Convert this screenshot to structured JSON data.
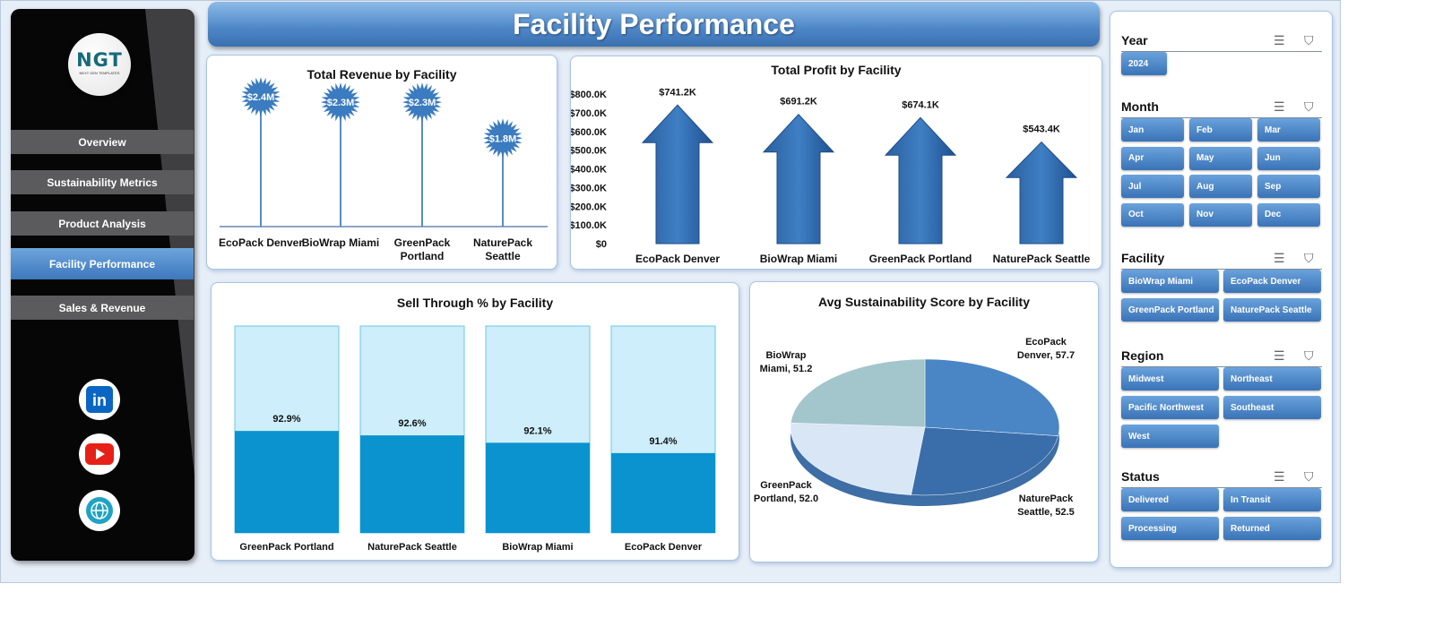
{
  "header": {
    "title": "Facility Performance"
  },
  "sidebar": {
    "logo_text": "NGT",
    "logo_sub": "NEXT GEN TEMPLATES",
    "items": [
      {
        "label": "Overview"
      },
      {
        "label": "Sustainability Metrics"
      },
      {
        "label": "Product Analysis"
      },
      {
        "label": "Facility Performance",
        "active": true
      },
      {
        "label": "Sales & Revenue"
      }
    ],
    "social": [
      {
        "icon": "linkedin-icon",
        "color": "#0a66c2"
      },
      {
        "icon": "youtube-icon",
        "color": "#e62117"
      },
      {
        "icon": "globe-icon",
        "color": "#1fa3c4"
      }
    ]
  },
  "chart_data": [
    {
      "type": "lollipop",
      "title": "Total Revenue  by Facility",
      "categories": [
        "EcoPack Denver",
        "BioWrap Miami",
        "GreenPack Portland",
        "NaturePack Seattle"
      ],
      "values": [
        2.4,
        2.3,
        2.3,
        1.8
      ],
      "labels": [
        "$2.4M",
        "$2.3M",
        "$2.3M",
        "$1.8M"
      ],
      "unit": "M",
      "color": "#3b7bbf"
    },
    {
      "type": "bar",
      "title": "Total Profit by Facility",
      "categories": [
        "EcoPack Denver",
        "BioWrap Miami",
        "GreenPack Portland",
        "NaturePack Seattle"
      ],
      "values": [
        741.2,
        691.2,
        674.1,
        543.4
      ],
      "labels": [
        "$741.2K",
        "$691.2K",
        "$674.1K",
        "$543.4K"
      ],
      "ylim": [
        0,
        800
      ],
      "yticks": [
        "$0",
        "$100.0K",
        "$200.0K",
        "$300.0K",
        "$400.0K",
        "$500.0K",
        "$600.0K",
        "$700.0K",
        "$800.0K"
      ],
      "color": "#2e6aad"
    },
    {
      "type": "bar",
      "title": "Sell Through  % by Facility",
      "categories": [
        "GreenPack Portland",
        "NaturePack Seattle",
        "BioWrap Miami",
        "EcoPack Denver"
      ],
      "values": [
        92.9,
        92.6,
        92.1,
        91.4
      ],
      "labels": [
        "92.9%",
        "92.6%",
        "92.1%",
        "91.4%"
      ],
      "ylim": [
        86,
        100
      ],
      "color": "#0a93cf",
      "bg_color": "#cdeefa"
    },
    {
      "type": "pie",
      "title": "Avg Sustainability  Score by Facility",
      "categories": [
        "EcoPack Denver",
        "NaturePack Seattle",
        "GreenPack Portland",
        "BioWrap Miami"
      ],
      "values": [
        57.7,
        52.5,
        52.0,
        51.2
      ],
      "labels": [
        [
          "EcoPack",
          "Denver, 57.7"
        ],
        [
          "NaturePack",
          "Seattle, 52.5"
        ],
        [
          "GreenPack",
          "Portland, 52.0"
        ],
        [
          "BioWrap",
          "Miami, 51.2"
        ]
      ],
      "colors": [
        "#4a86c5",
        "#3a6eab",
        "#d8e6f6",
        "#a3c6cc"
      ]
    }
  ],
  "slicers": [
    {
      "title": "Year",
      "items": [
        "2024"
      ]
    },
    {
      "title": "Month",
      "items": [
        "Jan",
        "Feb",
        "Mar",
        "Apr",
        "May",
        "Jun",
        "Jul",
        "Aug",
        "Sep",
        "Oct",
        "Nov",
        "Dec"
      ]
    },
    {
      "title": "Facility",
      "items": [
        "BioWrap Miami",
        "EcoPack Denver",
        "GreenPack Portland",
        "NaturePack Seattle"
      ]
    },
    {
      "title": "Region",
      "items": [
        "Midwest",
        "Northeast",
        "Pacific Northwest",
        "Southeast",
        "West"
      ]
    },
    {
      "title": "Status",
      "items": [
        "Delivered",
        "In Transit",
        "Processing",
        "Returned"
      ]
    }
  ]
}
